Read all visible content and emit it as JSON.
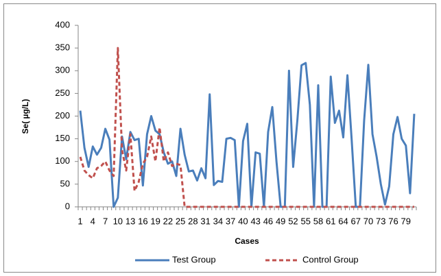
{
  "chart_data": {
    "type": "line",
    "y_label": "Se( µg/L)",
    "x_label": "Cases",
    "categories": [
      "1",
      null,
      null,
      "4",
      null,
      null,
      "7",
      null,
      null,
      "10",
      null,
      null,
      "13",
      null,
      null,
      "16",
      null,
      null,
      "19",
      null,
      null,
      "22",
      null,
      null,
      "25",
      null,
      null,
      "28",
      null,
      null,
      "31",
      null,
      null,
      "34",
      null,
      null,
      "37",
      null,
      null,
      "40",
      null,
      null,
      "43",
      null,
      null,
      "46",
      null,
      null,
      "49",
      null,
      null,
      "52",
      null,
      null,
      "55",
      null,
      null,
      "58",
      null,
      null,
      "61",
      null,
      null,
      "64",
      null,
      null,
      "67",
      null,
      null,
      "70",
      null,
      null,
      "73",
      null,
      null,
      "76",
      null,
      null,
      "79",
      null,
      null
    ],
    "series": [
      {
        "name": "Test Group",
        "color": "#4a7ebb",
        "dash": false,
        "values": [
          212,
          130,
          88,
          133,
          115,
          130,
          172,
          148,
          0,
          20,
          155,
          105,
          165,
          147,
          150,
          47,
          160,
          200,
          168,
          160,
          120,
          95,
          100,
          68,
          172,
          115,
          78,
          80,
          58,
          85,
          63,
          248,
          48,
          57,
          55,
          150,
          152,
          147,
          0,
          145,
          183,
          0,
          120,
          117,
          0,
          165,
          220,
          100,
          0,
          0,
          300,
          88,
          190,
          312,
          317,
          225,
          0,
          268,
          0,
          0,
          287,
          185,
          212,
          153,
          290,
          150,
          0,
          0,
          190,
          313,
          160,
          110,
          50,
          5,
          45,
          160,
          198,
          150,
          135,
          30,
          205
        ]
      },
      {
        "name": "Control Group",
        "color": "#c0504d",
        "dash": true,
        "values": [
          110,
          80,
          70,
          63,
          85,
          90,
          100,
          80,
          68,
          350,
          125,
          80,
          160,
          35,
          55,
          95,
          110,
          155,
          100,
          175,
          100,
          120,
          90,
          95,
          92,
          0,
          0,
          0,
          0,
          0,
          0,
          0,
          0,
          0,
          0,
          0,
          0,
          0,
          0,
          0,
          0,
          0,
          0,
          0,
          0,
          0,
          0,
          0,
          0,
          0,
          0,
          0,
          0,
          0,
          0,
          0,
          0,
          0,
          0,
          0,
          0,
          0,
          0,
          0,
          0,
          0,
          0,
          0,
          0,
          0,
          0,
          0,
          0,
          0,
          0,
          0,
          0,
          0,
          0,
          0,
          0
        ]
      }
    ],
    "ylim": [
      0,
      400
    ],
    "yticks": [
      0,
      50,
      100,
      150,
      200,
      250,
      300,
      350,
      400
    ],
    "legend": "bottom"
  }
}
